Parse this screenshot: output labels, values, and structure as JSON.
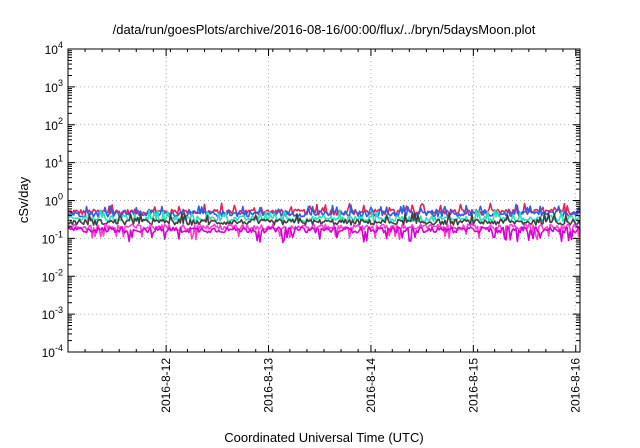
{
  "chart_data": {
    "type": "line",
    "title": "/data/run/goesPlots/archive/2016-08-16/00:00/flux/../bryn/5daysMoon.plot",
    "xlabel": "Coordinated Universal Time (UTC)",
    "ylabel": "cSv/day",
    "yscale": "log",
    "ylim": [
      0.0001,
      10000
    ],
    "xlim": [
      "2016-08-11T01:00",
      "2016-08-16T01:00"
    ],
    "x_ticks": [
      "2016-8-12",
      "2016-8-13",
      "2016-8-14",
      "2016-8-15",
      "2016-8-16"
    ],
    "y_ticks": [
      {
        "base": "10",
        "exp": "4",
        "value": 10000
      },
      {
        "base": "10",
        "exp": "3",
        "value": 1000
      },
      {
        "base": "10",
        "exp": "2",
        "value": 100
      },
      {
        "base": "10",
        "exp": "1",
        "value": 10
      },
      {
        "base": "10",
        "exp": "0",
        "value": 1
      },
      {
        "base": "10",
        "exp": "-1",
        "value": 0.1
      },
      {
        "base": "10",
        "exp": "-2",
        "value": 0.01
      },
      {
        "base": "10",
        "exp": "-3",
        "value": 0.001
      },
      {
        "base": "10",
        "exp": "-4",
        "value": 0.0001
      }
    ],
    "grid": true,
    "series": [
      {
        "color": "#e0245a",
        "approx_value": 0.5
      },
      {
        "color": "#2f5ee8",
        "approx_value": 0.45
      },
      {
        "color": "#2ee0b8",
        "approx_value": 0.33
      },
      {
        "color": "#404040",
        "approx_value": 0.27
      },
      {
        "color": "#ff3fd0",
        "approx_value": 0.2
      },
      {
        "color": "#d400d4",
        "approx_value": 0.17
      }
    ]
  }
}
